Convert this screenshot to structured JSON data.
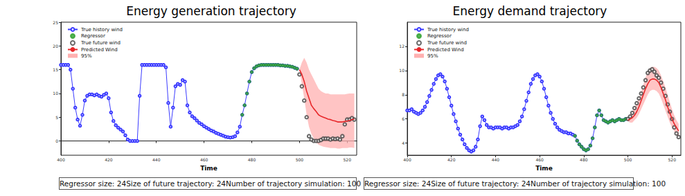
{
  "chart_data": [
    {
      "type": "line",
      "title": "Energy generation trajectory",
      "x_label": "Time",
      "xlim": [
        400,
        524
      ],
      "xticks": [
        400,
        420,
        440,
        460,
        480,
        500,
        520
      ],
      "ylim": [
        -3,
        25
      ],
      "yticks": [
        0,
        5,
        10,
        15,
        20,
        25
      ],
      "grid": false,
      "legend": "upper left",
      "annotations": [
        "Regressor size: 24",
        "Size of future trajectory: 24",
        "Number of trajectory simulation: 100"
      ],
      "series": [
        {
          "name": "True history wind",
          "type": "line",
          "marker": "open_circle",
          "line_style": "solid",
          "color": "#3b3bff",
          "x": [
            400,
            401,
            402,
            403,
            404,
            405,
            406,
            407,
            408,
            409,
            410,
            411,
            412,
            413,
            414,
            415,
            416,
            417,
            418,
            419,
            420,
            421,
            422,
            423,
            424,
            425,
            426,
            427,
            428,
            429,
            430,
            431,
            432,
            433,
            434,
            435,
            436,
            437,
            438,
            439,
            440,
            441,
            442,
            443,
            444,
            445,
            446,
            447,
            448,
            449,
            450,
            451,
            452,
            453,
            454,
            455,
            456,
            457,
            458,
            459,
            460,
            461,
            462,
            463,
            464,
            465,
            466,
            467,
            468,
            469,
            470,
            471,
            472,
            473,
            474,
            475,
            476,
            477,
            478,
            479,
            480,
            481,
            482,
            483,
            484,
            485,
            486,
            487,
            488,
            489,
            490,
            491,
            492,
            493,
            494,
            495,
            496,
            497,
            498,
            499
          ],
          "values": [
            16,
            16,
            16,
            16,
            15,
            11,
            7,
            4.5,
            3.2,
            5.5,
            8.5,
            9.5,
            9.8,
            9.8,
            9.6,
            9.8,
            9.5,
            9.3,
            9.7,
            10,
            9,
            6,
            4.2,
            3.3,
            2.8,
            2.4,
            2,
            1.2,
            0.3,
            0,
            0,
            0,
            0,
            9.5,
            16,
            16,
            16,
            16,
            16,
            16,
            16,
            16,
            16,
            16,
            15.5,
            8,
            3,
            7,
            11.5,
            12,
            11.8,
            12.8,
            12.5,
            7.5,
            6,
            5.2,
            4.8,
            4.3,
            3.8,
            3.5,
            3.1,
            2.8,
            2.5,
            2.2,
            2,
            1.7,
            1.5,
            1.3,
            1.1,
            0.9,
            0.8,
            0.7,
            0.8,
            1,
            1.8,
            3,
            5.5,
            7.5,
            10,
            12.5,
            14.5,
            15.3,
            15.7,
            15.9,
            16,
            16,
            16,
            16,
            16,
            16,
            16,
            16,
            15.9,
            15.9,
            15.8,
            15.8,
            15.7,
            15.6,
            15.4,
            15.2
          ]
        },
        {
          "name": "Regressor",
          "type": "scatter",
          "marker": "circle",
          "color": "#2ca02c",
          "x": [
            476,
            477,
            478,
            479,
            480,
            481,
            482,
            483,
            484,
            485,
            486,
            487,
            488,
            489,
            490,
            491,
            492,
            493,
            494,
            495,
            496,
            497,
            498,
            499
          ],
          "values": [
            5.5,
            7.5,
            10,
            12.5,
            14.5,
            15.3,
            15.7,
            15.9,
            16,
            16,
            16,
            16,
            16,
            16,
            16,
            16,
            15.9,
            15.9,
            15.8,
            15.8,
            15.7,
            15.6,
            15.4,
            15.2
          ]
        },
        {
          "name": "True future wind",
          "type": "scatter",
          "marker": "open_circle",
          "color": "#444444",
          "x": [
            500,
            501,
            502,
            503,
            504,
            505,
            506,
            507,
            508,
            509,
            510,
            511,
            512,
            513,
            514,
            515,
            516,
            517,
            518,
            519,
            520,
            521,
            522,
            523
          ],
          "values": [
            14,
            11.5,
            8.5,
            5,
            1,
            0.3,
            0,
            0,
            0,
            0.2,
            0.5,
            0.5,
            0.5,
            0.3,
            0.5,
            0.4,
            0.5,
            0.3,
            1,
            3.5,
            4.5,
            4.5,
            4.8,
            4.5
          ]
        },
        {
          "name": "Predicted Wind",
          "type": "line",
          "marker": "none",
          "line_style": "solid",
          "color": "#e8282b",
          "x": [
            500,
            501,
            502,
            503,
            504,
            505,
            506,
            507,
            508,
            509,
            510,
            511,
            512,
            513,
            514,
            515,
            516,
            517,
            518,
            519,
            520,
            521,
            522,
            523
          ],
          "values": [
            15,
            14,
            12.5,
            10.5,
            9,
            7.5,
            6.8,
            6.2,
            5.5,
            5.2,
            5,
            4.8,
            4.6,
            4.5,
            4.3,
            4.2,
            4,
            4,
            4,
            4.1,
            4.2,
            4.3,
            4.5,
            4.6
          ]
        },
        {
          "name": "95%",
          "type": "band",
          "color": "#ffb0b0",
          "x": [
            500,
            501,
            502,
            503,
            504,
            505,
            506,
            507,
            508,
            509,
            510,
            511,
            512,
            513,
            514,
            515,
            516,
            517,
            518,
            519,
            520,
            521,
            522,
            523
          ],
          "lower": [
            15,
            12,
            9,
            5.5,
            3,
            1.5,
            0.5,
            -0.3,
            -0.8,
            -1,
            -1.2,
            -1.3,
            -1.4,
            -1.5,
            -1.5,
            -1.5,
            -1.6,
            -1.6,
            -1.5,
            -1.5,
            -1.5,
            -1.4,
            -1.4,
            -1.5
          ],
          "upper": [
            15,
            16.5,
            17.5,
            16.5,
            15,
            14,
            13,
            12,
            11,
            10.5,
            10.2,
            10,
            10,
            9.8,
            9.8,
            9.8,
            9.8,
            9.8,
            9.8,
            9.8,
            9.9,
            10,
            10,
            10
          ]
        }
      ]
    },
    {
      "type": "line",
      "title": "Energy demand trajectory",
      "x_label": "Time",
      "xlim": [
        400,
        524
      ],
      "xticks": [
        400,
        420,
        440,
        460,
        480,
        500,
        520
      ],
      "ylim": [
        3,
        14
      ],
      "yticks": [
        4,
        6,
        8,
        10,
        12
      ],
      "grid": false,
      "legend": "upper left",
      "annotations": [
        "Regressor size: 24",
        "Size of future trajectory: 24",
        "Number of trajectory simulation: 100"
      ],
      "series": [
        {
          "name": "True history wind",
          "type": "line",
          "marker": "open_circle",
          "line_style": "solid",
          "color": "#3b3bff",
          "x": [
            400,
            401,
            402,
            403,
            404,
            405,
            406,
            407,
            408,
            409,
            410,
            411,
            412,
            413,
            414,
            415,
            416,
            417,
            418,
            419,
            420,
            421,
            422,
            423,
            424,
            425,
            426,
            427,
            428,
            429,
            430,
            431,
            432,
            433,
            434,
            435,
            436,
            437,
            438,
            439,
            440,
            441,
            442,
            443,
            444,
            445,
            446,
            447,
            448,
            449,
            450,
            451,
            452,
            453,
            454,
            455,
            456,
            457,
            458,
            459,
            460,
            461,
            462,
            463,
            464,
            465,
            466,
            467,
            468,
            469,
            470,
            471,
            472,
            473,
            474,
            475,
            476,
            477,
            478,
            479,
            480,
            481,
            482,
            483,
            484,
            485,
            486,
            487,
            488,
            489,
            490,
            491,
            492,
            493,
            494,
            495,
            496,
            497,
            498,
            499
          ],
          "values": [
            6.7,
            6.7,
            6.8,
            6.6,
            6.5,
            6.4,
            6.5,
            6.7,
            7,
            7.4,
            7.9,
            8.4,
            8.9,
            9.3,
            9.6,
            9.7,
            9.5,
            9.1,
            8.5,
            7.8,
            7.1,
            6.4,
            5.8,
            5.2,
            4.7,
            4.3,
            3.9,
            3.6,
            3.4,
            3.3,
            3.4,
            3.7,
            4.3,
            5.4,
            6.2,
            5.9,
            5.5,
            5.3,
            5.3,
            5.2,
            5.3,
            5.3,
            5.3,
            5.2,
            5.3,
            5.3,
            5.2,
            5.3,
            5.3,
            5.4,
            5.5,
            5.8,
            6.2,
            6.8,
            7.5,
            8.2,
            8.9,
            9.3,
            9.6,
            9.7,
            9.5,
            9.1,
            8.5,
            7.8,
            7.1,
            6.5,
            6,
            5.6,
            5.3,
            5.1,
            5,
            4.9,
            4.9,
            4.8,
            4.8,
            4.7,
            4.6,
            4.2,
            3.9,
            3.7,
            3.5,
            3.4,
            3.5,
            3.8,
            4.4,
            5.3,
            6.3,
            6.7,
            6.3,
            5.9,
            5.8,
            5.7,
            5.8,
            5.9,
            5.8,
            5.9,
            6,
            5.9,
            5.9,
            6
          ]
        },
        {
          "name": "Regressor",
          "type": "scatter",
          "marker": "circle",
          "color": "#2ca02c",
          "x": [
            476,
            477,
            478,
            479,
            480,
            481,
            482,
            483,
            484,
            485,
            486,
            487,
            488,
            489,
            490,
            491,
            492,
            493,
            494,
            495,
            496,
            497,
            498,
            499
          ],
          "values": [
            4.6,
            4.2,
            3.9,
            3.7,
            3.5,
            3.4,
            3.5,
            3.8,
            4.4,
            5.3,
            6.3,
            6.7,
            6.3,
            5.9,
            5.8,
            5.7,
            5.8,
            5.9,
            5.8,
            5.9,
            6,
            5.9,
            5.9,
            6
          ]
        },
        {
          "name": "True future wind",
          "type": "scatter",
          "marker": "open_circle",
          "color": "#444444",
          "x": [
            500,
            501,
            502,
            503,
            504,
            505,
            506,
            507,
            508,
            509,
            510,
            511,
            512,
            513,
            514,
            515,
            516,
            517,
            518,
            519,
            520,
            521,
            522,
            523
          ],
          "values": [
            6,
            6.2,
            6.5,
            6.9,
            7.3,
            7.7,
            8.1,
            8.6,
            9.2,
            9.8,
            10,
            10.1,
            9.9,
            9.6,
            9.4,
            9,
            8.5,
            7.9,
            7.2,
            6.6,
            6,
            5.3,
            4.8,
            4.5
          ]
        },
        {
          "name": "Predicted Wind",
          "type": "line",
          "marker": "none",
          "line_style": "solid",
          "color": "#e8282b",
          "x": [
            500,
            501,
            502,
            503,
            504,
            505,
            506,
            507,
            508,
            509,
            510,
            511,
            512,
            513,
            514,
            515,
            516,
            517,
            518,
            519,
            520,
            521,
            522,
            523
          ],
          "values": [
            5.9,
            6,
            6.1,
            6.3,
            6.6,
            7,
            7.5,
            8,
            8.5,
            8.9,
            9.2,
            9.3,
            9.3,
            9.2,
            9,
            8.6,
            8.1,
            7.6,
            7,
            6.5,
            6,
            5.6,
            5.3,
            5
          ]
        },
        {
          "name": "95%",
          "type": "band",
          "color": "#ffb0b0",
          "x": [
            500,
            501,
            502,
            503,
            504,
            505,
            506,
            507,
            508,
            509,
            510,
            511,
            512,
            513,
            514,
            515,
            516,
            517,
            518,
            519,
            520,
            521,
            522,
            523
          ],
          "lower": [
            5.8,
            5.7,
            5.7,
            5.9,
            6.1,
            6.4,
            6.8,
            7.2,
            7.6,
            8,
            8.3,
            8.4,
            8.4,
            8.3,
            8.1,
            7.7,
            7.2,
            6.7,
            6.2,
            5.7,
            5.3,
            5,
            4.7,
            4.4
          ],
          "upper": [
            6,
            6.3,
            6.6,
            6.9,
            7.3,
            7.7,
            8.2,
            8.8,
            9.4,
            9.9,
            10.2,
            10.3,
            10.3,
            10.2,
            10,
            9.6,
            9.1,
            8.6,
            8,
            7.4,
            6.8,
            6.3,
            5.9,
            5.6
          ]
        }
      ]
    }
  ]
}
